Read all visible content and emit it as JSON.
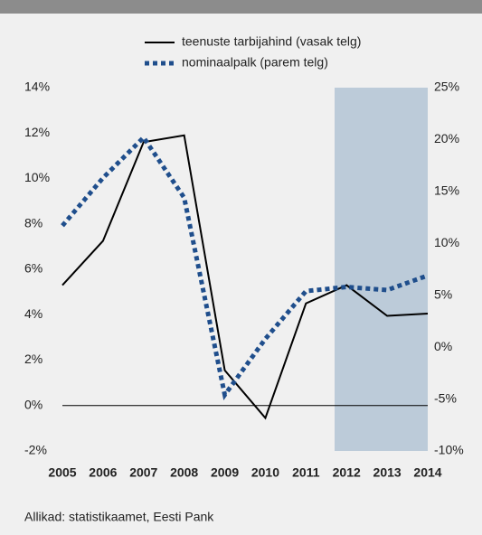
{
  "chart_data": {
    "type": "line",
    "categories": [
      "2005",
      "2006",
      "2007",
      "2008",
      "2009",
      "2010",
      "2011",
      "2012",
      "2013",
      "2014"
    ],
    "series": [
      {
        "name": "teenuste tarbijahind (vasak telg)",
        "color": "#000000",
        "style": "solid",
        "values": [
          5.3,
          7.25,
          11.6,
          11.9,
          1.55,
          -0.55,
          4.5,
          5.3,
          3.95,
          4.05
        ]
      },
      {
        "name": "nominaalpalk (parem telg)",
        "color": "#1f4e8c",
        "style": "dotted",
        "axis": "y2",
        "values": [
          11.7,
          16.3,
          20.2,
          14.4,
          -4.6,
          0.8,
          5.4,
          5.8,
          5.5,
          6.9
        ]
      }
    ],
    "ylim": [
      -2,
      14
    ],
    "yticks": [
      {
        "value": -2,
        "label": "-2%"
      },
      {
        "value": 0,
        "label": "0%"
      },
      {
        "value": 2,
        "label": "2%"
      },
      {
        "value": 4,
        "label": "4%"
      },
      {
        "value": 6,
        "label": "6%"
      },
      {
        "value": 8,
        "label": "8%"
      },
      {
        "value": 10,
        "label": "10%"
      },
      {
        "value": 12,
        "label": "12%"
      },
      {
        "value": 14,
        "label": "14%"
      }
    ],
    "y2lim": [
      -10,
      25
    ],
    "y2ticks": [
      {
        "value": -10,
        "label": "-10%"
      },
      {
        "value": -5,
        "label": "-5%"
      },
      {
        "value": 0,
        "label": "0%"
      },
      {
        "value": 5,
        "label": "5%"
      },
      {
        "value": 10,
        "label": "10%"
      },
      {
        "value": 15,
        "label": "15%"
      },
      {
        "value": 20,
        "label": "20%"
      },
      {
        "value": 25,
        "label": "25%"
      }
    ],
    "source": "Allikad: statistikaamet, Eesti Pank"
  }
}
